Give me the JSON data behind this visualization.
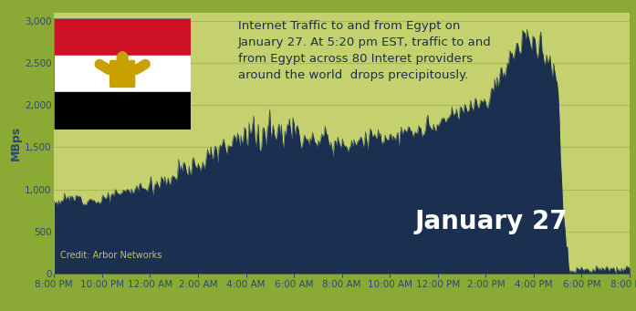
{
  "background_color": "#8aaa35",
  "plot_bg_color": "#c5d16e",
  "fill_color": "#1b3050",
  "ylabel": "MBps",
  "ylabel_color": "#2a4a6a",
  "yticks": [
    0,
    500,
    1000,
    1500,
    2000,
    2500,
    3000
  ],
  "ylim": [
    0,
    3100
  ],
  "xtick_labels": [
    "8:00 PM",
    "10:00 PM",
    "12:00 AM",
    "2:00 AM",
    "4:00 AM",
    "6:00 AM",
    "8:00 AM",
    "10:00 AM",
    "12:00 PM",
    "2:00 PM",
    "4:00 PM",
    "6:00 PM",
    "8:00 PM"
  ],
  "annotation_text": "Internet Traffic to and from Egypt on\nJanuary 27. At 5:20 pm EST, traffic to and\nfrom Egypt across 80 Interet providers\naround the world  drops precipitously.",
  "annotation_color": "#1b3050",
  "annotation_fontsize": 9.5,
  "date_label": "January 27",
  "date_color": "#ffffff",
  "date_fontsize": 20,
  "credit_text": "Credit: Arbor Networks",
  "credit_color": "#b8c860",
  "credit_fontsize": 7,
  "grid_color": "#a8bb50",
  "tick_color": "#2a4a6a",
  "tick_fontsize": 7.5,
  "flag_red": "#CE1126",
  "flag_white": "#FFFFFF",
  "flag_black": "#000000",
  "flag_eagle": "#C8A000",
  "n_points": 500
}
